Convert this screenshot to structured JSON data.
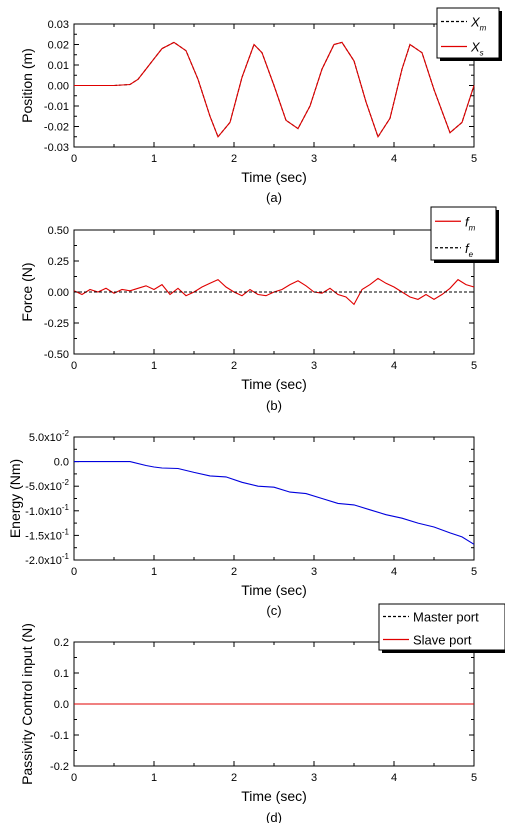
{
  "chart_data": [
    {
      "type": "line",
      "xlabel": "Time (sec)",
      "ylabel": "Position (m)",
      "caption": "(a)",
      "xlim": [
        0,
        5
      ],
      "ylim": [
        -0.03,
        0.03
      ],
      "xticks": [
        "0",
        "1",
        "2",
        "3",
        "4",
        "5"
      ],
      "yticks": [
        "-0.03",
        "-0.02",
        "-0.01",
        "0.00",
        "0.01",
        "0.02",
        "0.03"
      ],
      "legend_position": "top-right",
      "series": [
        {
          "name": "X",
          "subscript": "m",
          "style": "dashed",
          "color": "#000000",
          "x": [
            0,
            0.5,
            0.7,
            0.8,
            0.9,
            1.0,
            1.1,
            1.25,
            1.4,
            1.55,
            1.7,
            1.8,
            1.95,
            2.1,
            2.25,
            2.35,
            2.5,
            2.65,
            2.8,
            2.95,
            3.1,
            3.25,
            3.35,
            3.5,
            3.65,
            3.8,
            3.95,
            4.1,
            4.2,
            4.35,
            4.5,
            4.7,
            4.85,
            5.0
          ],
          "y": [
            0,
            0,
            0.0005,
            0.003,
            0.008,
            0.013,
            0.018,
            0.021,
            0.017,
            0.003,
            -0.015,
            -0.025,
            -0.018,
            0.004,
            0.02,
            0.016,
            0.0,
            -0.017,
            -0.021,
            -0.01,
            0.008,
            0.02,
            0.021,
            0.012,
            -0.008,
            -0.025,
            -0.016,
            0.008,
            0.02,
            0.016,
            -0.002,
            -0.023,
            -0.018,
            0.0
          ]
        },
        {
          "name": "X",
          "subscript": "s",
          "style": "solid",
          "color": "#e00000",
          "x": [
            0,
            0.5,
            0.7,
            0.8,
            0.9,
            1.0,
            1.1,
            1.25,
            1.4,
            1.55,
            1.7,
            1.8,
            1.95,
            2.1,
            2.25,
            2.35,
            2.5,
            2.65,
            2.8,
            2.95,
            3.1,
            3.25,
            3.35,
            3.5,
            3.65,
            3.8,
            3.95,
            4.1,
            4.2,
            4.35,
            4.5,
            4.7,
            4.85,
            5.0
          ],
          "y": [
            0,
            0,
            0.0005,
            0.003,
            0.008,
            0.013,
            0.018,
            0.021,
            0.017,
            0.003,
            -0.015,
            -0.025,
            -0.018,
            0.004,
            0.02,
            0.016,
            0.0,
            -0.017,
            -0.021,
            -0.01,
            0.008,
            0.02,
            0.021,
            0.012,
            -0.008,
            -0.025,
            -0.016,
            0.008,
            0.02,
            0.016,
            -0.002,
            -0.023,
            -0.018,
            0.0
          ]
        }
      ]
    },
    {
      "type": "line",
      "xlabel": "Time (sec)",
      "ylabel": "Force (N)",
      "caption": "(b)",
      "xlim": [
        0,
        5
      ],
      "ylim": [
        -0.5,
        0.5
      ],
      "xticks": [
        "0",
        "1",
        "2",
        "3",
        "4",
        "5"
      ],
      "yticks": [
        "-0.50",
        "-0.25",
        "0.00",
        "0.25",
        "0.50"
      ],
      "legend_position": "top-right",
      "series": [
        {
          "name": "f",
          "subscript": "m",
          "style": "solid",
          "color": "#e00000",
          "x": [
            0,
            0.1,
            0.2,
            0.3,
            0.4,
            0.5,
            0.6,
            0.7,
            0.8,
            0.9,
            1.0,
            1.1,
            1.2,
            1.3,
            1.4,
            1.5,
            1.6,
            1.7,
            1.8,
            1.9,
            2.0,
            2.1,
            2.2,
            2.3,
            2.4,
            2.5,
            2.6,
            2.7,
            2.8,
            2.9,
            3.0,
            3.1,
            3.2,
            3.3,
            3.4,
            3.5,
            3.6,
            3.7,
            3.8,
            3.9,
            4.0,
            4.1,
            4.2,
            4.3,
            4.4,
            4.5,
            4.6,
            4.7,
            4.8,
            4.9,
            5.0
          ],
          "y": [
            0.01,
            -0.02,
            0.02,
            0.0,
            0.03,
            -0.01,
            0.02,
            0.01,
            0.03,
            0.05,
            0.02,
            0.06,
            -0.02,
            0.03,
            -0.03,
            0.0,
            0.04,
            0.07,
            0.1,
            0.04,
            0.0,
            -0.03,
            0.02,
            -0.02,
            -0.03,
            0.0,
            0.02,
            0.06,
            0.09,
            0.05,
            0.0,
            -0.01,
            0.03,
            -0.02,
            -0.04,
            -0.1,
            0.02,
            0.06,
            0.11,
            0.07,
            0.04,
            0.0,
            -0.04,
            -0.06,
            -0.02,
            -0.06,
            -0.02,
            0.03,
            0.1,
            0.06,
            0.04
          ]
        },
        {
          "name": "f",
          "subscript": "e",
          "style": "dashed",
          "color": "#000000",
          "x": [
            0,
            5
          ],
          "y": [
            0,
            0
          ]
        }
      ]
    },
    {
      "type": "line",
      "xlabel": "Time (sec)",
      "ylabel": "Energy (Nm)",
      "caption": "(c)",
      "xlim": [
        0,
        5
      ],
      "ylim": [
        -0.2,
        0.05
      ],
      "xticks": [
        "0",
        "1",
        "2",
        "3",
        "4",
        "5"
      ],
      "yticks": [
        "5.0x10^-2",
        "0.0",
        "-5.0x10^-2",
        "-1.0x10^-1",
        "-1.5x10^-1",
        "-2.0x10^-1"
      ],
      "series": [
        {
          "name": "",
          "style": "solid",
          "color": "#0000dd",
          "x": [
            0,
            0.5,
            0.7,
            0.9,
            1.0,
            1.1,
            1.3,
            1.5,
            1.7,
            1.9,
            2.1,
            2.3,
            2.5,
            2.7,
            2.9,
            3.1,
            3.3,
            3.5,
            3.7,
            3.9,
            4.1,
            4.3,
            4.5,
            4.7,
            4.85,
            5.0
          ],
          "y": [
            0.0,
            0.0,
            0.0,
            -0.008,
            -0.011,
            -0.013,
            -0.014,
            -0.022,
            -0.029,
            -0.031,
            -0.042,
            -0.05,
            -0.052,
            -0.062,
            -0.065,
            -0.075,
            -0.085,
            -0.088,
            -0.098,
            -0.108,
            -0.115,
            -0.125,
            -0.133,
            -0.145,
            -0.153,
            -0.168
          ]
        }
      ]
    },
    {
      "type": "line",
      "xlabel": "Time (sec)",
      "ylabel": "Passivity Control input (N)",
      "caption": "(d)",
      "xlim": [
        0,
        5
      ],
      "ylim": [
        -0.2,
        0.2
      ],
      "xticks": [
        "0",
        "1",
        "2",
        "3",
        "4",
        "5"
      ],
      "yticks": [
        "-0.2",
        "-0.1",
        "0.0",
        "0.1",
        "0.2"
      ],
      "legend_position": "top-right",
      "series": [
        {
          "name": "Master port",
          "style": "dashed",
          "color": "#000000",
          "x": [
            0,
            5
          ],
          "y": [
            0,
            0
          ]
        },
        {
          "name": "Slave port",
          "style": "solid",
          "color": "#e00000",
          "x": [
            0,
            5
          ],
          "y": [
            0,
            0
          ]
        }
      ]
    }
  ]
}
